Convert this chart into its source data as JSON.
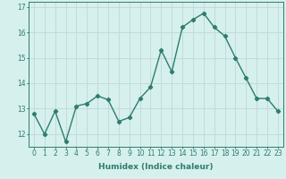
{
  "x": [
    0,
    1,
    2,
    3,
    4,
    5,
    6,
    7,
    8,
    9,
    10,
    11,
    12,
    13,
    14,
    15,
    16,
    17,
    18,
    19,
    20,
    21,
    22,
    23
  ],
  "y": [
    12.8,
    12.0,
    12.9,
    11.7,
    13.1,
    13.2,
    13.5,
    13.35,
    12.5,
    12.65,
    13.4,
    13.85,
    15.3,
    14.45,
    16.2,
    16.5,
    16.75,
    16.2,
    15.85,
    15.0,
    14.2,
    13.4,
    13.4,
    12.9
  ],
  "line_color": "#2e7d6e",
  "marker": "D",
  "marker_size": 2.2,
  "bg_color": "#d6f0ee",
  "grid_color": "#c0d8d8",
  "xlabel": "Humidex (Indice chaleur)",
  "ylabel": "",
  "xlim": [
    -0.5,
    23.5
  ],
  "ylim": [
    11.5,
    17.2
  ],
  "yticks": [
    12,
    13,
    14,
    15,
    16,
    17
  ],
  "xticks": [
    0,
    1,
    2,
    3,
    4,
    5,
    6,
    7,
    8,
    9,
    10,
    11,
    12,
    13,
    14,
    15,
    16,
    17,
    18,
    19,
    20,
    21,
    22,
    23
  ],
  "xlabel_fontsize": 6.5,
  "tick_fontsize": 5.5,
  "line_width": 1.0
}
